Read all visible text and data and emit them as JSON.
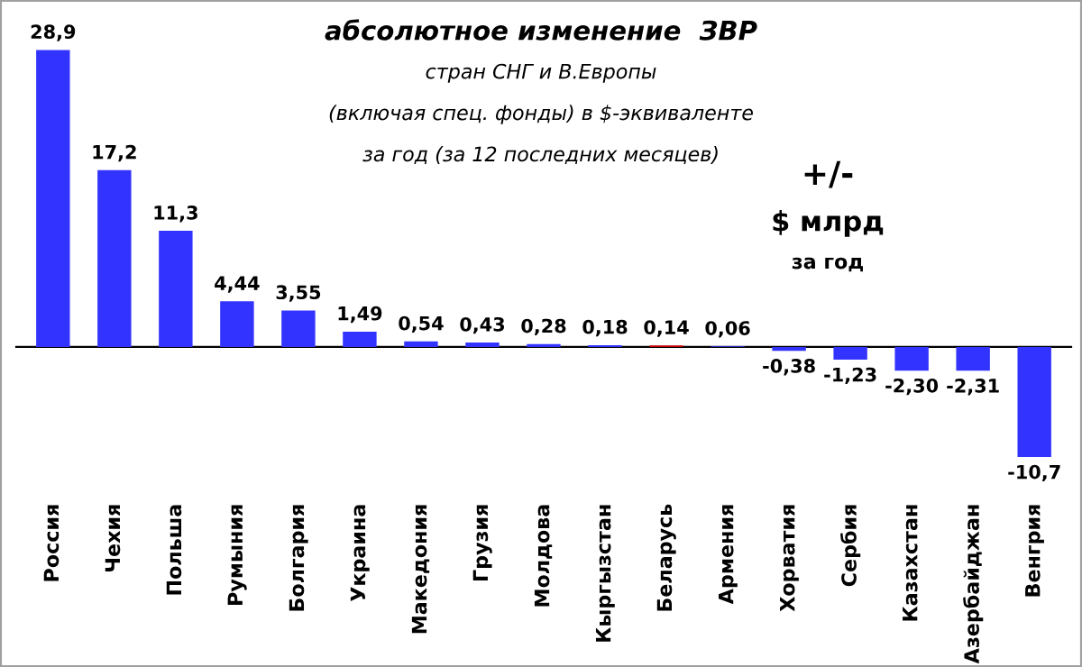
{
  "chart_data": {
    "type": "bar",
    "title": "абсолютное изменение  ЗВР",
    "subtitle": [
      "стран СНГ и В.Европы",
      "(включая спец. фонды) в $-эквиваленте",
      "за год (за 12 последних месяцев)"
    ],
    "annotations": [
      "+/-",
      "$ млрд",
      "за год"
    ],
    "categories": [
      "Россия",
      "Чехия",
      "Польша",
      "Румыния",
      "Болгария",
      "Украина",
      "Македония",
      "Грузия",
      "Молдова",
      "Кыргызстан",
      "Беларусь",
      "Армения",
      "Хорватия",
      "Сербия",
      "Казахстан",
      "Азербайджан",
      "Венгрия"
    ],
    "values": [
      28.9,
      17.2,
      11.3,
      4.44,
      3.55,
      1.49,
      0.54,
      0.43,
      0.28,
      0.18,
      0.14,
      0.06,
      -0.38,
      -1.23,
      -2.3,
      -2.31,
      -10.7
    ],
    "value_labels": [
      "28,9",
      "17,2",
      "11,3",
      "4,44",
      "3,55",
      "1,49",
      "0,54",
      "0,43",
      "0,28",
      "0,18",
      "0,14",
      "0,06",
      "-0,38",
      "-1,23",
      "-2,30",
      "-2,31",
      "-10,7"
    ],
    "colors": [
      "#3333ff",
      "#3333ff",
      "#3333ff",
      "#3333ff",
      "#3333ff",
      "#3333ff",
      "#3333ff",
      "#3333ff",
      "#3333ff",
      "#3333ff",
      "#cc0000",
      "#3333ff",
      "#3333ff",
      "#3333ff",
      "#3333ff",
      "#3333ff",
      "#3333ff"
    ],
    "grid": false,
    "legend": false
  }
}
